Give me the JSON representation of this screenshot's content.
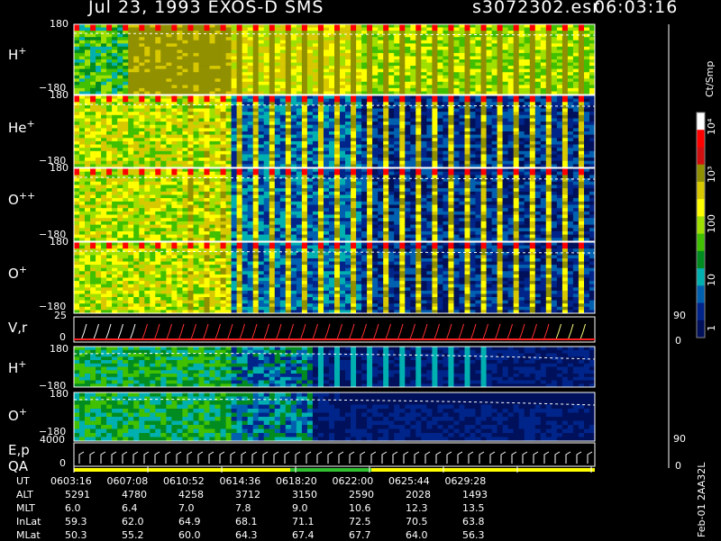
{
  "header": {
    "title": "Jul 23, 1993    EXOS-D SMS",
    "file": "s3072302.esr",
    "time": "06:03:16"
  },
  "panels": [
    {
      "label_main": "H",
      "label_sup": "+",
      "ymax": "180",
      "ymin": "−180"
    },
    {
      "label_main": "He",
      "label_sup": "+",
      "ymax": "180",
      "ymin": "−180"
    },
    {
      "label_main": "O",
      "label_sup": "++",
      "ymax": "180",
      "ymin": "−180"
    },
    {
      "label_main": "O",
      "label_sup": "+",
      "ymax": "180",
      "ymin": "−180"
    }
  ],
  "vr_panel": {
    "label": "V,r",
    "ymax": "25",
    "ymin": "0",
    "right_top": "90",
    "right_bottom": "0"
  },
  "lower_panels": [
    {
      "label_main": "H",
      "label_sup": "+",
      "ymax": "180",
      "ymin": "−180"
    },
    {
      "label_main": "O",
      "label_sup": "+",
      "ymax": "180",
      "ymin": "−180"
    }
  ],
  "ep_panel": {
    "label1": "E,p",
    "label2": "QA",
    "ymax": "4000",
    "ymin": "0",
    "right_top": "90",
    "right_bottom": "0"
  },
  "colorbar": {
    "unit": "Ct/Smp",
    "ticks": [
      "10⁴",
      "10³",
      "100",
      "10",
      "1"
    ],
    "colors": [
      "#ffffff",
      "#ff0000",
      "#d01010",
      "#909000",
      "#d8c800",
      "#ffff00",
      "#a0e000",
      "#40c000",
      "#008c20",
      "#00b0b0",
      "#0060b0",
      "#00258a",
      "#00105a"
    ]
  },
  "side_label": "Feb-01 2AA32L",
  "chart_data": {
    "type": "heatmap",
    "title": "Jul 23, 1993    EXOS-D SMS",
    "xlabel": "UT",
    "series_labels": [
      "H+",
      "He+",
      "O++",
      "O+",
      "V,r",
      "H+",
      "O+",
      "E,p QA"
    ],
    "table": {
      "rows": [
        {
          "name": "UT",
          "values": [
            "0603:16",
            "0607:08",
            "0610:52",
            "0614:36",
            "0618:20",
            "0622:00",
            "0625:44",
            "0629:28"
          ]
        },
        {
          "name": "ALT",
          "values": [
            "5291",
            "4780",
            "4258",
            "3712",
            "3150",
            "2590",
            "2028",
            "1493"
          ]
        },
        {
          "name": "MLT",
          "values": [
            "6.0",
            "6.4",
            "7.0",
            "7.8",
            "9.0",
            "10.6",
            "12.3",
            "13.5"
          ]
        },
        {
          "name": "InLat",
          "values": [
            "59.3",
            "62.0",
            "64.9",
            "68.1",
            "71.1",
            "72.5",
            "70.5",
            "63.8"
          ]
        },
        {
          "name": "MLat",
          "values": [
            "50.3",
            "55.2",
            "60.0",
            "64.3",
            "67.4",
            "67.7",
            "64.0",
            "56.3"
          ]
        }
      ]
    }
  }
}
